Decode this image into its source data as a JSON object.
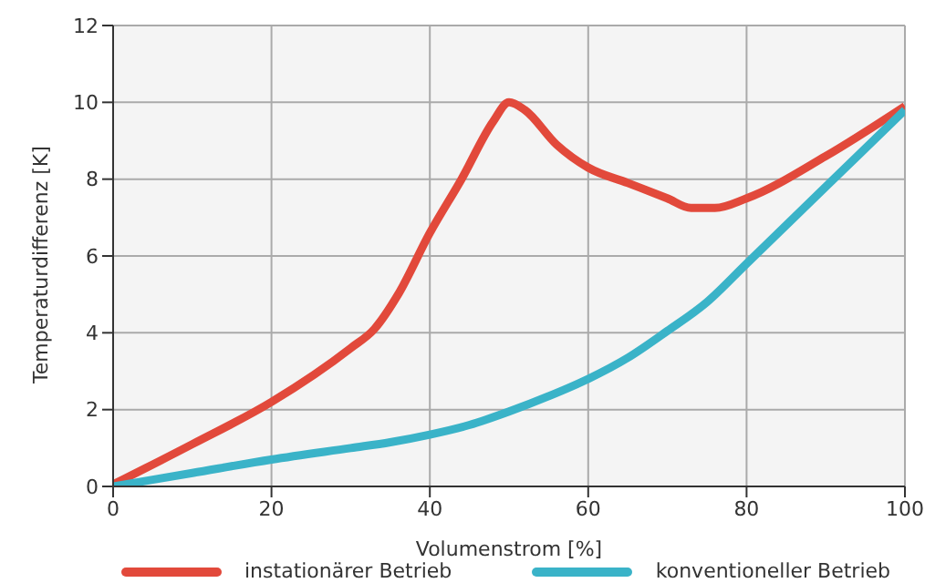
{
  "chart_data": {
    "type": "line",
    "xlabel": "Volumenstrom [%]",
    "ylabel": "Temperaturdifferenz [K]",
    "xlim": [
      0,
      100
    ],
    "xticks": [
      0,
      20,
      40,
      60,
      80,
      100
    ],
    "ylim": [
      0,
      12
    ],
    "yticks": [
      0,
      2,
      4,
      6,
      8,
      10,
      12
    ],
    "grid": true,
    "legend": "bottom",
    "marker": "none",
    "line_style": "solid",
    "series": [
      {
        "name": "instationärer Betrieb",
        "color": "#e2493b",
        "x": [
          0,
          10,
          20,
          30,
          33,
          36,
          40,
          44,
          48,
          50,
          52,
          56,
          60,
          65,
          70,
          73,
          76,
          80,
          90,
          100
        ],
        "values": [
          0.05,
          1.1,
          2.2,
          3.6,
          4.1,
          5,
          6.6,
          8,
          9.5,
          10,
          9.8,
          8.9,
          8.3,
          7.9,
          7.5,
          7.25,
          7.25,
          7.5,
          8.6,
          9.9
        ]
      },
      {
        "name": "konventioneller Betrieb",
        "color": "#3ab3c8",
        "x": [
          0,
          10,
          20,
          30,
          35,
          40,
          45,
          50,
          55,
          60,
          65,
          70,
          75,
          80,
          90,
          100
        ],
        "values": [
          0,
          0.35,
          0.7,
          1,
          1.15,
          1.35,
          1.6,
          1.95,
          2.35,
          2.8,
          3.35,
          4.05,
          4.8,
          5.8,
          7.8,
          9.8
        ]
      }
    ]
  }
}
